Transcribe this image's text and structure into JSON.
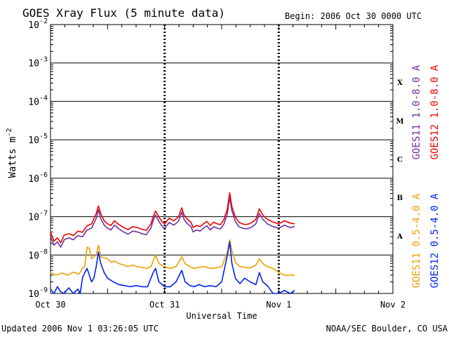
{
  "chart_data": {
    "type": "line",
    "title": "GOES Xray Flux (5 minute data)",
    "begin": "Begin:  2006 Oct 30 0000 UTC",
    "xlabel": "Universal Time",
    "ylabel_base": "Watts m",
    "ylabel_exp": "-2",
    "yscale": "log",
    "ylim": [
      1e-09,
      0.01
    ],
    "y_ticks": [
      {
        "exp": -2,
        "base": "10",
        "sup": "-2"
      },
      {
        "exp": -3,
        "base": "10",
        "sup": "-3"
      },
      {
        "exp": -4,
        "base": "10",
        "sup": "-4"
      },
      {
        "exp": -5,
        "base": "10",
        "sup": "-5"
      },
      {
        "exp": -6,
        "base": "10",
        "sup": "-6"
      },
      {
        "exp": -7,
        "base": "10",
        "sup": "-7"
      },
      {
        "exp": -8,
        "base": "10",
        "sup": "-8"
      },
      {
        "exp": -9,
        "base": "10",
        "sup": "-9"
      }
    ],
    "x_days": 3,
    "x_ticks": [
      {
        "day": 0,
        "label": "Oct 30"
      },
      {
        "day": 1,
        "label": "Oct 31"
      },
      {
        "day": 2,
        "label": "Nov 1"
      },
      {
        "day": 3,
        "label": "Nov 2"
      }
    ],
    "flare_classes": [
      {
        "label": "X",
        "flux": 0.000316
      },
      {
        "label": "M",
        "flux": 3.16e-05
      },
      {
        "label": "C",
        "flux": 3.16e-06
      },
      {
        "label": "B",
        "flux": 3.16e-07
      },
      {
        "label": "A",
        "flux": 3.16e-08
      }
    ],
    "series": [
      {
        "name": "GOES11 1.0-8.0 A",
        "color": "#7030a0",
        "points": [
          [
            0,
            3e-08
          ],
          [
            0.03,
            1.8e-08
          ],
          [
            0.06,
            2.2e-08
          ],
          [
            0.09,
            1.6e-08
          ],
          [
            0.12,
            2.5e-08
          ],
          [
            0.16,
            2.8e-08
          ],
          [
            0.2,
            2.5e-08
          ],
          [
            0.24,
            3.2e-08
          ],
          [
            0.28,
            3e-08
          ],
          [
            0.32,
            4.5e-08
          ],
          [
            0.36,
            5e-08
          ],
          [
            0.4,
            9e-08
          ],
          [
            0.42,
            1.5e-07
          ],
          [
            0.44,
            9e-08
          ],
          [
            0.47,
            6e-08
          ],
          [
            0.5,
            5e-08
          ],
          [
            0.53,
            4.5e-08
          ],
          [
            0.56,
            6e-08
          ],
          [
            0.6,
            4.8e-08
          ],
          [
            0.64,
            4e-08
          ],
          [
            0.68,
            3.5e-08
          ],
          [
            0.72,
            4.2e-08
          ],
          [
            0.76,
            4e-08
          ],
          [
            0.8,
            3.6e-08
          ],
          [
            0.84,
            3.4e-08
          ],
          [
            0.88,
            5e-08
          ],
          [
            0.9,
            8e-08
          ],
          [
            0.92,
            1.1e-07
          ],
          [
            0.95,
            7.5e-08
          ],
          [
            0.98,
            5.5e-08
          ],
          [
            1.0,
            5e-08
          ],
          [
            1.04,
            7e-08
          ],
          [
            1.08,
            6e-08
          ],
          [
            1.12,
            7.5e-08
          ],
          [
            1.15,
            1.3e-07
          ],
          [
            1.17,
            8.5e-08
          ],
          [
            1.2,
            6.5e-08
          ],
          [
            1.23,
            5.5e-08
          ],
          [
            1.25,
            4e-08
          ],
          [
            1.28,
            4.5e-08
          ],
          [
            1.31,
            4.2e-08
          ],
          [
            1.34,
            5e-08
          ],
          [
            1.37,
            5.8e-08
          ],
          [
            1.4,
            4.5e-08
          ],
          [
            1.43,
            5.5e-08
          ],
          [
            1.46,
            5e-08
          ],
          [
            1.49,
            4.8e-08
          ],
          [
            1.52,
            6.5e-08
          ],
          [
            1.55,
            1.2e-07
          ],
          [
            1.57,
            3.2e-07
          ],
          [
            1.59,
            1.4e-07
          ],
          [
            1.62,
            7.5e-08
          ],
          [
            1.65,
            5.5e-08
          ],
          [
            1.68,
            5e-08
          ],
          [
            1.71,
            4.8e-08
          ],
          [
            1.74,
            5e-08
          ],
          [
            1.77,
            5.5e-08
          ],
          [
            1.8,
            6.5e-08
          ],
          [
            1.83,
            1.2e-07
          ],
          [
            1.86,
            8.5e-08
          ],
          [
            1.9,
            6.5e-08
          ],
          [
            1.95,
            5.5e-08
          ],
          [
            2.0,
            5e-08
          ],
          [
            2.05,
            6e-08
          ],
          [
            2.1,
            5.2e-08
          ],
          [
            2.14,
            5.5e-08
          ]
        ]
      },
      {
        "name": "GOES12 1.0-8.0 A",
        "color": "#ee0000",
        "points": [
          [
            0,
            4e-08
          ],
          [
            0.03,
            2.3e-08
          ],
          [
            0.06,
            2.8e-08
          ],
          [
            0.09,
            2.1e-08
          ],
          [
            0.12,
            3.3e-08
          ],
          [
            0.16,
            3.6e-08
          ],
          [
            0.2,
            3.2e-08
          ],
          [
            0.24,
            4.2e-08
          ],
          [
            0.28,
            3.9e-08
          ],
          [
            0.32,
            5.8e-08
          ],
          [
            0.36,
            6.5e-08
          ],
          [
            0.4,
            1.2e-07
          ],
          [
            0.42,
            1.9e-07
          ],
          [
            0.44,
            1.2e-07
          ],
          [
            0.47,
            7.8e-08
          ],
          [
            0.5,
            6.5e-08
          ],
          [
            0.53,
            5.9e-08
          ],
          [
            0.56,
            7.8e-08
          ],
          [
            0.6,
            6.2e-08
          ],
          [
            0.64,
            5.2e-08
          ],
          [
            0.68,
            4.6e-08
          ],
          [
            0.72,
            5.5e-08
          ],
          [
            0.76,
            5.2e-08
          ],
          [
            0.8,
            4.7e-08
          ],
          [
            0.84,
            4.4e-08
          ],
          [
            0.88,
            6.5e-08
          ],
          [
            0.9,
            1e-07
          ],
          [
            0.92,
            1.4e-07
          ],
          [
            0.95,
            9.8e-08
          ],
          [
            0.98,
            7.2e-08
          ],
          [
            1.0,
            6.5e-08
          ],
          [
            1.04,
            9.1e-08
          ],
          [
            1.08,
            7.8e-08
          ],
          [
            1.12,
            9.8e-08
          ],
          [
            1.15,
            1.7e-07
          ],
          [
            1.17,
            1.1e-07
          ],
          [
            1.2,
            8.5e-08
          ],
          [
            1.23,
            7.2e-08
          ],
          [
            1.25,
            5.2e-08
          ],
          [
            1.28,
            5.9e-08
          ],
          [
            1.31,
            5.5e-08
          ],
          [
            1.34,
            6.5e-08
          ],
          [
            1.37,
            7.5e-08
          ],
          [
            1.4,
            5.9e-08
          ],
          [
            1.43,
            7.2e-08
          ],
          [
            1.46,
            6.5e-08
          ],
          [
            1.49,
            6.2e-08
          ],
          [
            1.52,
            8.5e-08
          ],
          [
            1.55,
            1.6e-07
          ],
          [
            1.57,
            4.2e-07
          ],
          [
            1.59,
            1.8e-07
          ],
          [
            1.62,
            9.8e-08
          ],
          [
            1.65,
            7.2e-08
          ],
          [
            1.68,
            6.5e-08
          ],
          [
            1.71,
            6.2e-08
          ],
          [
            1.74,
            6.5e-08
          ],
          [
            1.77,
            7.2e-08
          ],
          [
            1.8,
            8.5e-08
          ],
          [
            1.83,
            1.6e-07
          ],
          [
            1.86,
            1.1e-07
          ],
          [
            1.9,
            8.5e-08
          ],
          [
            1.95,
            7.2e-08
          ],
          [
            2.0,
            6.5e-08
          ],
          [
            2.05,
            7.8e-08
          ],
          [
            2.1,
            6.8e-08
          ],
          [
            2.14,
            6.5e-08
          ]
        ]
      },
      {
        "name": "GOES11 0.5-4.0 A",
        "color": "#f0a000",
        "points": [
          [
            0,
            3.5e-09
          ],
          [
            0.05,
            3e-09
          ],
          [
            0.1,
            3.4e-09
          ],
          [
            0.15,
            3e-09
          ],
          [
            0.2,
            3.6e-09
          ],
          [
            0.25,
            3.2e-09
          ],
          [
            0.28,
            4.5e-09
          ],
          [
            0.3,
            5e-09
          ],
          [
            0.32,
            1.6e-08
          ],
          [
            0.34,
            1.5e-08
          ],
          [
            0.36,
            8e-09
          ],
          [
            0.4,
            1e-08
          ],
          [
            0.42,
            1.8e-08
          ],
          [
            0.44,
            9e-09
          ],
          [
            0.47,
            8.5e-09
          ],
          [
            0.5,
            8e-09
          ],
          [
            0.53,
            6.5e-09
          ],
          [
            0.56,
            7e-09
          ],
          [
            0.6,
            6e-09
          ],
          [
            0.64,
            5.5e-09
          ],
          [
            0.68,
            5e-09
          ],
          [
            0.72,
            5.5e-09
          ],
          [
            0.76,
            5e-09
          ],
          [
            0.8,
            4.8e-09
          ],
          [
            0.84,
            4.5e-09
          ],
          [
            0.88,
            5e-09
          ],
          [
            0.9,
            7e-09
          ],
          [
            0.92,
            1e-08
          ],
          [
            0.95,
            6e-09
          ],
          [
            1.0,
            5e-09
          ],
          [
            1.05,
            4.5e-09
          ],
          [
            1.1,
            5e-09
          ],
          [
            1.15,
            9e-09
          ],
          [
            1.18,
            6e-09
          ],
          [
            1.22,
            5e-09
          ],
          [
            1.26,
            4.5e-09
          ],
          [
            1.3,
            4.8e-09
          ],
          [
            1.35,
            5e-09
          ],
          [
            1.4,
            4.5e-09
          ],
          [
            1.45,
            4.6e-09
          ],
          [
            1.5,
            5e-09
          ],
          [
            1.55,
            1.2e-08
          ],
          [
            1.57,
            2.5e-08
          ],
          [
            1.59,
            1.3e-08
          ],
          [
            1.62,
            6.5e-09
          ],
          [
            1.66,
            5e-09
          ],
          [
            1.7,
            4.8e-09
          ],
          [
            1.75,
            4.6e-09
          ],
          [
            1.8,
            5.5e-09
          ],
          [
            1.83,
            8e-09
          ],
          [
            1.86,
            6e-09
          ],
          [
            1.9,
            5e-09
          ],
          [
            1.95,
            4.5e-09
          ],
          [
            2.0,
            3.5e-09
          ],
          [
            2.05,
            3e-09
          ],
          [
            2.1,
            3e-09
          ],
          [
            2.14,
            3e-09
          ]
        ]
      },
      {
        "name": "GOES12 0.5-4.0 A",
        "color": "#0022ee",
        "points": [
          [
            0,
            1.3e-09
          ],
          [
            0.03,
            1e-09
          ],
          [
            0.06,
            1.5e-09
          ],
          [
            0.09,
            1.1e-09
          ],
          [
            0.12,
            1e-09
          ],
          [
            0.16,
            1.4e-09
          ],
          [
            0.2,
            1e-09
          ],
          [
            0.24,
            1.3e-09
          ],
          [
            0.26,
            1e-09
          ],
          [
            0.28,
            2.5e-09
          ],
          [
            0.3,
            3.5e-09
          ],
          [
            0.32,
            4.5e-09
          ],
          [
            0.34,
            3e-09
          ],
          [
            0.36,
            2e-09
          ],
          [
            0.38,
            2.5e-09
          ],
          [
            0.4,
            5e-09
          ],
          [
            0.42,
            1.2e-08
          ],
          [
            0.44,
            6e-09
          ],
          [
            0.47,
            3.5e-09
          ],
          [
            0.5,
            2.5e-09
          ],
          [
            0.55,
            2e-09
          ],
          [
            0.6,
            1.7e-09
          ],
          [
            0.65,
            1.6e-09
          ],
          [
            0.7,
            1.5e-09
          ],
          [
            0.75,
            1.6e-09
          ],
          [
            0.8,
            1.5e-09
          ],
          [
            0.85,
            1.5e-09
          ],
          [
            0.88,
            2.5e-09
          ],
          [
            0.9,
            3.5e-09
          ],
          [
            0.92,
            4.5e-09
          ],
          [
            0.95,
            2e-09
          ],
          [
            1.0,
            1.5e-09
          ],
          [
            1.05,
            1.5e-09
          ],
          [
            1.1,
            2e-09
          ],
          [
            1.15,
            4e-09
          ],
          [
            1.18,
            2e-09
          ],
          [
            1.22,
            1.6e-09
          ],
          [
            1.26,
            1.5e-09
          ],
          [
            1.3,
            1.7e-09
          ],
          [
            1.35,
            1.5e-09
          ],
          [
            1.4,
            1.6e-09
          ],
          [
            1.45,
            1.5e-09
          ],
          [
            1.5,
            2e-09
          ],
          [
            1.55,
            1e-08
          ],
          [
            1.57,
            2.2e-08
          ],
          [
            1.59,
            6e-09
          ],
          [
            1.62,
            2.5e-09
          ],
          [
            1.66,
            1.8e-09
          ],
          [
            1.7,
            2.5e-09
          ],
          [
            1.75,
            2e-09
          ],
          [
            1.8,
            1.7e-09
          ],
          [
            1.83,
            3.5e-09
          ],
          [
            1.86,
            2e-09
          ],
          [
            1.9,
            1.6e-09
          ],
          [
            1.95,
            1e-09
          ],
          [
            2.0,
            1e-09
          ],
          [
            2.05,
            1.2e-09
          ],
          [
            2.1,
            1e-09
          ],
          [
            2.14,
            1.2e-09
          ]
        ]
      }
    ]
  },
  "footer": {
    "updated": "Updated 2006 Nov  1 03:26:05 UTC",
    "credit": "NOAA/SEC Boulder, CO USA"
  }
}
